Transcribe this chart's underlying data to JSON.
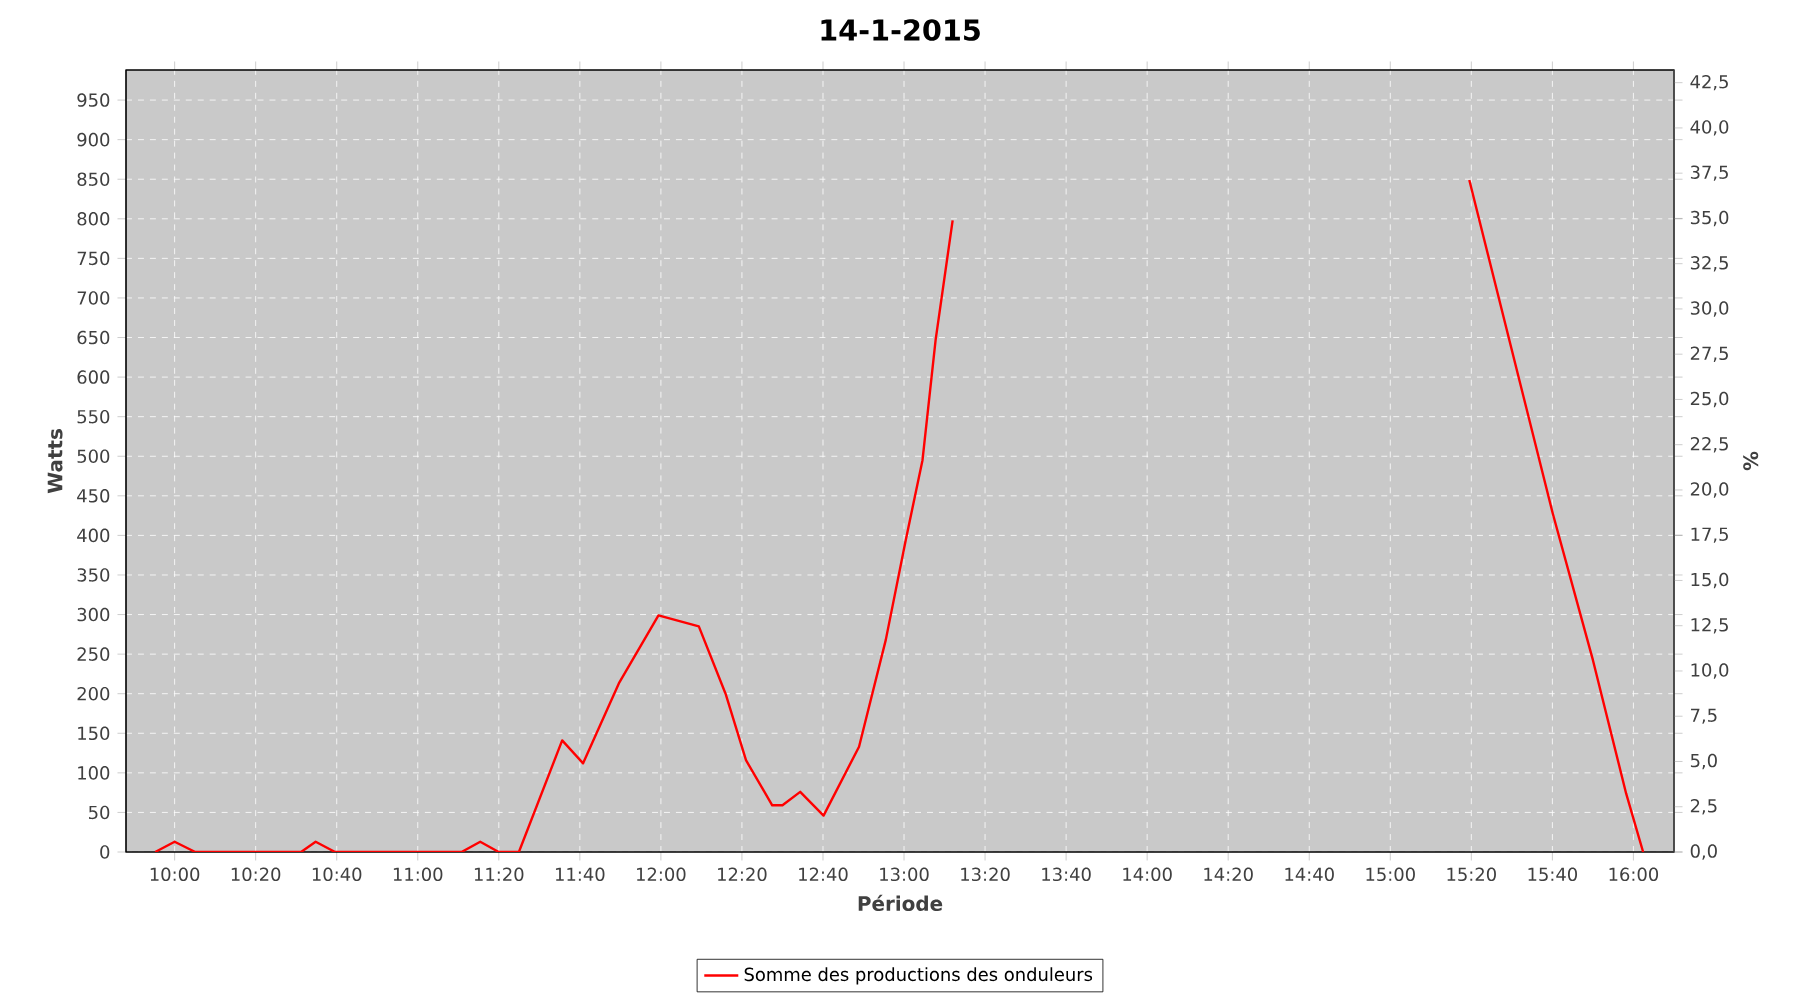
{
  "chart_data": {
    "type": "line",
    "title": "14-1-2015",
    "xlabel": "Période",
    "ylabel": "Watts",
    "y2label": "%",
    "x": [
      9.92,
      10.0,
      10.085,
      10.52,
      10.58,
      10.66,
      11.18,
      11.257,
      11.333,
      11.416,
      11.594,
      11.68,
      11.827,
      11.99,
      12.156,
      12.266,
      12.35,
      12.458,
      12.5,
      12.573,
      12.669,
      12.815,
      12.925,
      13.007,
      13.076,
      13.13,
      13.2,
      13.303,
      14.2,
      15.207,
      15.325,
      15.531,
      15.668,
      15.833,
      15.97,
      16.04
    ],
    "series": [
      {
        "name": "Somme des productions des onduleurs",
        "color": "#ff0000",
        "values": [
          0,
          13,
          0,
          0,
          13,
          0,
          0,
          13,
          0,
          0,
          141,
          112,
          213,
          299,
          285,
          200,
          116,
          59,
          59,
          76,
          46,
          133,
          268,
          394,
          495,
          647,
          798,
          null,
          null,
          null,
          849,
          596,
          428,
          243,
          74,
          0
        ]
      }
    ],
    "marker": "none",
    "grid": true,
    "legend": "bottom",
    "xlim": [
      9.8,
      16.167
    ],
    "ylim": [
      0,
      988
    ],
    "y2lim": [
      0,
      43.2
    ],
    "xticks": [
      {
        "value": 10,
        "label": "10:00"
      },
      {
        "value": 10.3333,
        "label": "10:20"
      },
      {
        "value": 10.6667,
        "label": "10:40"
      },
      {
        "value": 11,
        "label": "11:00"
      },
      {
        "value": 11.3333,
        "label": "11:20"
      },
      {
        "value": 11.6667,
        "label": "11:40"
      },
      {
        "value": 12,
        "label": "12:00"
      },
      {
        "value": 12.3333,
        "label": "12:20"
      },
      {
        "value": 12.6667,
        "label": "12:40"
      },
      {
        "value": 13,
        "label": "13:00"
      },
      {
        "value": 13.3333,
        "label": "13:20"
      },
      {
        "value": 13.6667,
        "label": "13:40"
      },
      {
        "value": 14,
        "label": "14:00"
      },
      {
        "value": 14.3333,
        "label": "14:20"
      },
      {
        "value": 14.6667,
        "label": "14:40"
      },
      {
        "value": 15,
        "label": "15:00"
      },
      {
        "value": 15.3333,
        "label": "15:20"
      },
      {
        "value": 15.6667,
        "label": "15:40"
      },
      {
        "value": 16,
        "label": "16:00"
      }
    ],
    "yticks": [
      0,
      50,
      100,
      150,
      200,
      250,
      300,
      350,
      400,
      450,
      500,
      550,
      600,
      650,
      700,
      750,
      800,
      850,
      900,
      950
    ],
    "y2ticks": [
      {
        "value": 0,
        "label": "0,0"
      },
      {
        "value": 2.5,
        "label": "2,5"
      },
      {
        "value": 5,
        "label": "5,0"
      },
      {
        "value": 7.5,
        "label": "7,5"
      },
      {
        "value": 10,
        "label": "10,0"
      },
      {
        "value": 12.5,
        "label": "12,5"
      },
      {
        "value": 15,
        "label": "15,0"
      },
      {
        "value": 17.5,
        "label": "17,5"
      },
      {
        "value": 20,
        "label": "20,0"
      },
      {
        "value": 22.5,
        "label": "22,5"
      },
      {
        "value": 25,
        "label": "25,0"
      },
      {
        "value": 27.5,
        "label": "27,5"
      },
      {
        "value": 30,
        "label": "30,0"
      },
      {
        "value": 32.5,
        "label": "32,5"
      },
      {
        "value": 35,
        "label": "35,0"
      },
      {
        "value": 37.5,
        "label": "37,5"
      },
      {
        "value": 40,
        "label": "40,0"
      },
      {
        "value": 42.5,
        "label": "42,5"
      }
    ]
  }
}
